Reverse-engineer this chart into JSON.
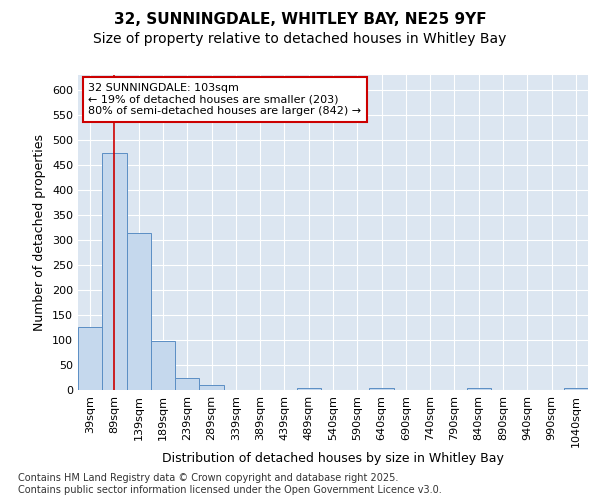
{
  "title1": "32, SUNNINGDALE, WHITLEY BAY, NE25 9YF",
  "title2": "Size of property relative to detached houses in Whitley Bay",
  "xlabel": "Distribution of detached houses by size in Whitley Bay",
  "ylabel": "Number of detached properties",
  "categories": [
    "39sqm",
    "89sqm",
    "139sqm",
    "189sqm",
    "239sqm",
    "289sqm",
    "339sqm",
    "389sqm",
    "439sqm",
    "489sqm",
    "540sqm",
    "590sqm",
    "640sqm",
    "690sqm",
    "740sqm",
    "790sqm",
    "840sqm",
    "890sqm",
    "940sqm",
    "990sqm",
    "1040sqm"
  ],
  "values": [
    127,
    475,
    315,
    98,
    25,
    10,
    0,
    0,
    0,
    5,
    0,
    0,
    5,
    0,
    0,
    0,
    5,
    0,
    0,
    0,
    5
  ],
  "bar_color": "#c5d8ed",
  "bar_edge_color": "#5b8ec4",
  "vline_x": 1,
  "vline_color": "#cc0000",
  "annotation_text": "32 SUNNINGDALE: 103sqm\n← 19% of detached houses are smaller (203)\n80% of semi-detached houses are larger (842) →",
  "annotation_box_color": "#ffffff",
  "annotation_box_edge": "#cc0000",
  "figure_bg_color": "#ffffff",
  "plot_bg_color": "#dce6f1",
  "ylim": [
    0,
    630
  ],
  "yticks": [
    0,
    50,
    100,
    150,
    200,
    250,
    300,
    350,
    400,
    450,
    500,
    550,
    600
  ],
  "footer": "Contains HM Land Registry data © Crown copyright and database right 2025.\nContains public sector information licensed under the Open Government Licence v3.0.",
  "title_fontsize": 11,
  "subtitle_fontsize": 10,
  "tick_fontsize": 8,
  "label_fontsize": 9,
  "footer_fontsize": 7
}
